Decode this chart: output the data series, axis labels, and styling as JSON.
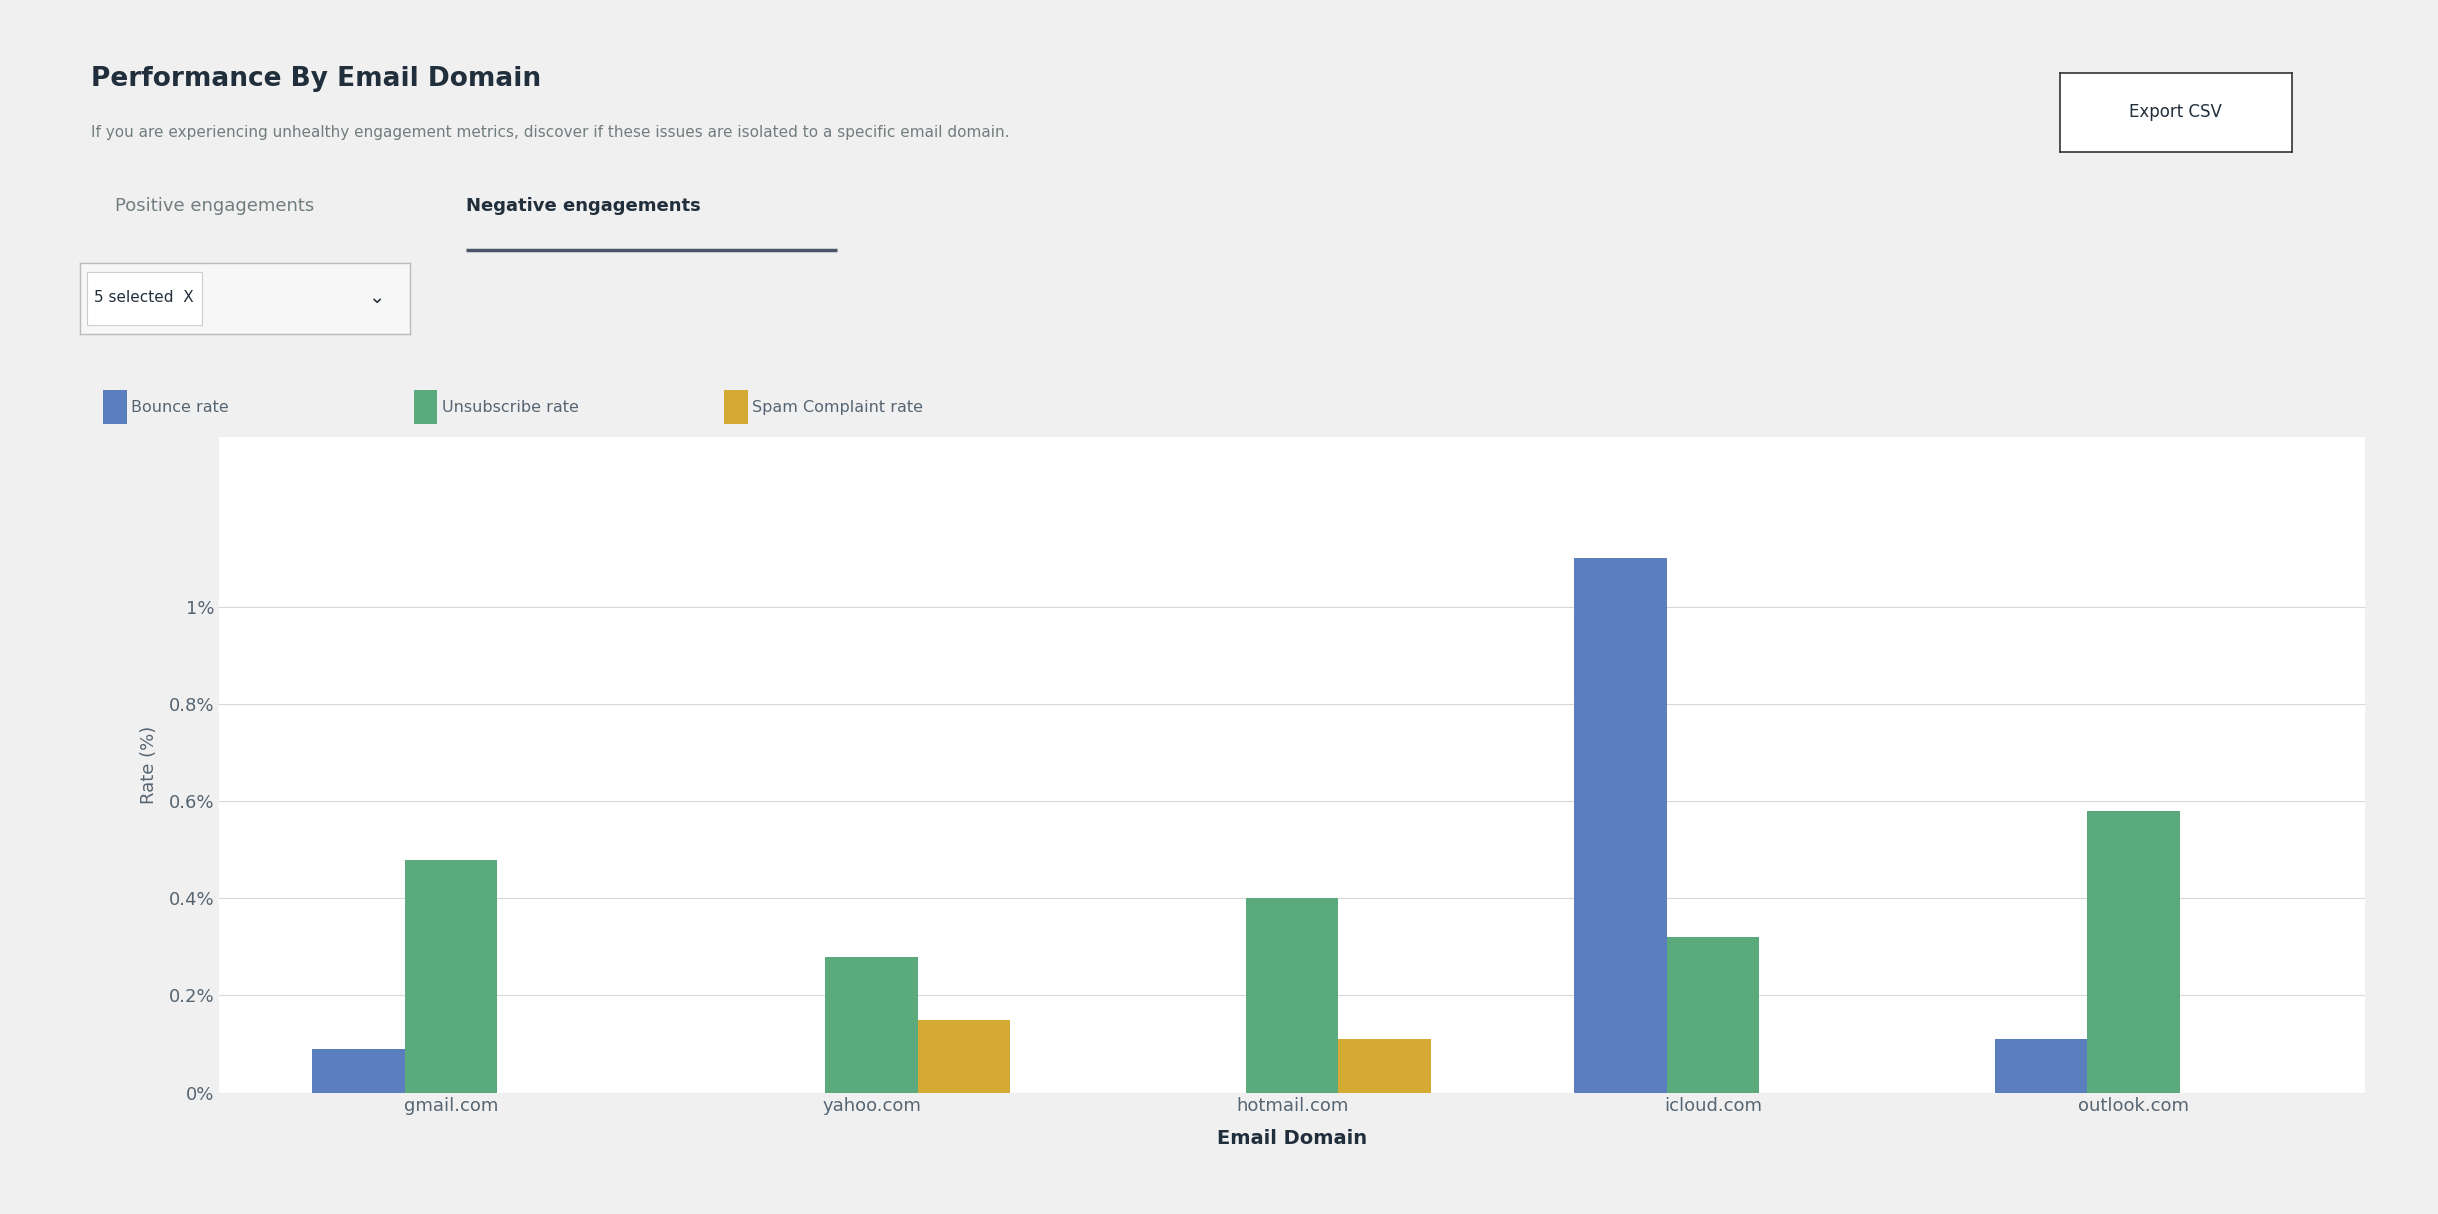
{
  "title": "Performance By Email Domain",
  "subtitle": "If you are experiencing unhealthy engagement metrics, discover if these issues are isolated to a specific email domain.",
  "tab_active": "Negative engagements",
  "tab_inactive": "Positive engagements",
  "dropdown_label": "5 selected  X",
  "xlabel": "Email Domain",
  "ylabel": "Rate (%)",
  "categories": [
    "gmail.com",
    "yahoo.com",
    "hotmail.com",
    "icloud.com",
    "outlook.com"
  ],
  "bounce_rate": [
    0.09,
    0.0,
    0.0,
    1.1,
    0.11
  ],
  "unsubscribe_rate": [
    0.48,
    0.28,
    0.4,
    0.32,
    0.58
  ],
  "spam_rate": [
    0.0,
    0.15,
    0.11,
    0.0,
    0.0
  ],
  "bounce_color": "#5b7fbe",
  "unsubscribe_color": "#5aaa7e",
  "spam_color": "#d4aa35",
  "legend_labels": [
    "Bounce rate",
    "Unsubscribe rate",
    "Spam Complaint rate"
  ],
  "ytick_vals": [
    0.0,
    0.002,
    0.004,
    0.006,
    0.008,
    0.01
  ],
  "ytick_labels": [
    "0%",
    "0.2%",
    "0.4%",
    "0.6%",
    "0.8%",
    "1%"
  ],
  "ymax": 0.0135,
  "background_color": "#ffffff",
  "outer_bg": "#f0f0f0",
  "grid_color": "#d8d8d8",
  "text_color": "#566573",
  "title_color": "#212f3c",
  "subtitle_color": "#717d7e",
  "tab_underline_color": "#4a5568",
  "bar_width": 0.22,
  "export_btn_label": "Export CSV"
}
